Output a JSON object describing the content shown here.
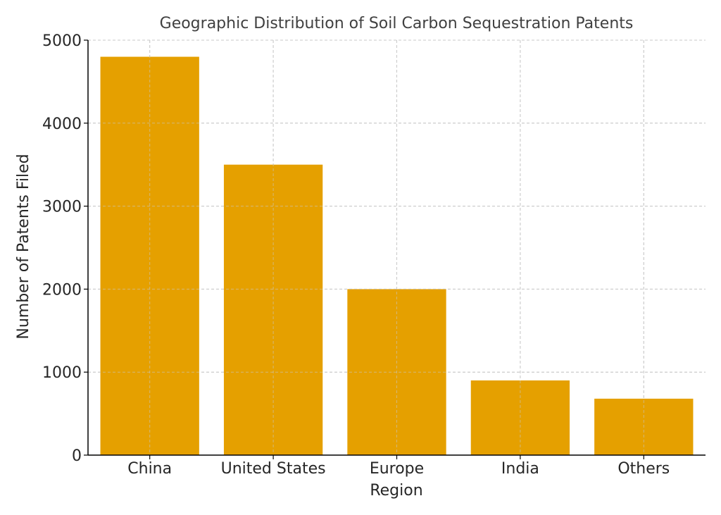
{
  "chart_data": {
    "type": "bar",
    "title": "Geographic Distribution of Soil Carbon Sequestration Patents",
    "xlabel": "Region",
    "ylabel": "Number of Patents Filed",
    "categories": [
      "China",
      "United States",
      "Europe",
      "India",
      "Others"
    ],
    "values": [
      4800,
      3500,
      2000,
      900,
      680
    ],
    "ylim": [
      0,
      5000
    ],
    "yticks": [
      0,
      1000,
      2000,
      3000,
      4000,
      5000
    ],
    "grid": true,
    "bar_color": "#e5a000",
    "grid_color": "#c8c8c8",
    "axis_color": "#000000"
  }
}
